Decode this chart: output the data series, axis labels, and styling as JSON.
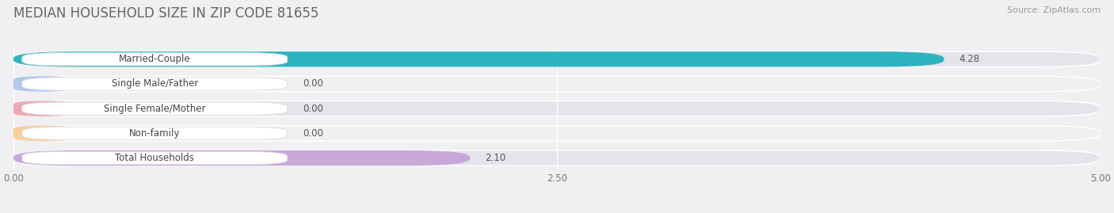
{
  "title": "MEDIAN HOUSEHOLD SIZE IN ZIP CODE 81655",
  "source": "Source: ZipAtlas.com",
  "categories": [
    "Married-Couple",
    "Single Male/Father",
    "Single Female/Mother",
    "Non-family",
    "Total Households"
  ],
  "values": [
    4.28,
    0.0,
    0.0,
    0.0,
    2.1
  ],
  "bar_colors": [
    "#2db5bf",
    "#a8c0e8",
    "#f09aaa",
    "#f8c88a",
    "#c8a8d8"
  ],
  "row_bg_light": "#f0f0f2",
  "row_bg_dark": "#e4e4ea",
  "xlim_max": 5.0,
  "xticks": [
    0.0,
    2.5,
    5.0
  ],
  "xtick_labels": [
    "0.00",
    "2.50",
    "5.00"
  ],
  "bar_height": 0.62,
  "figure_bg": "#f0f0f2",
  "title_fontsize": 12,
  "label_fontsize": 8.5,
  "value_fontsize": 8.5,
  "source_fontsize": 8
}
